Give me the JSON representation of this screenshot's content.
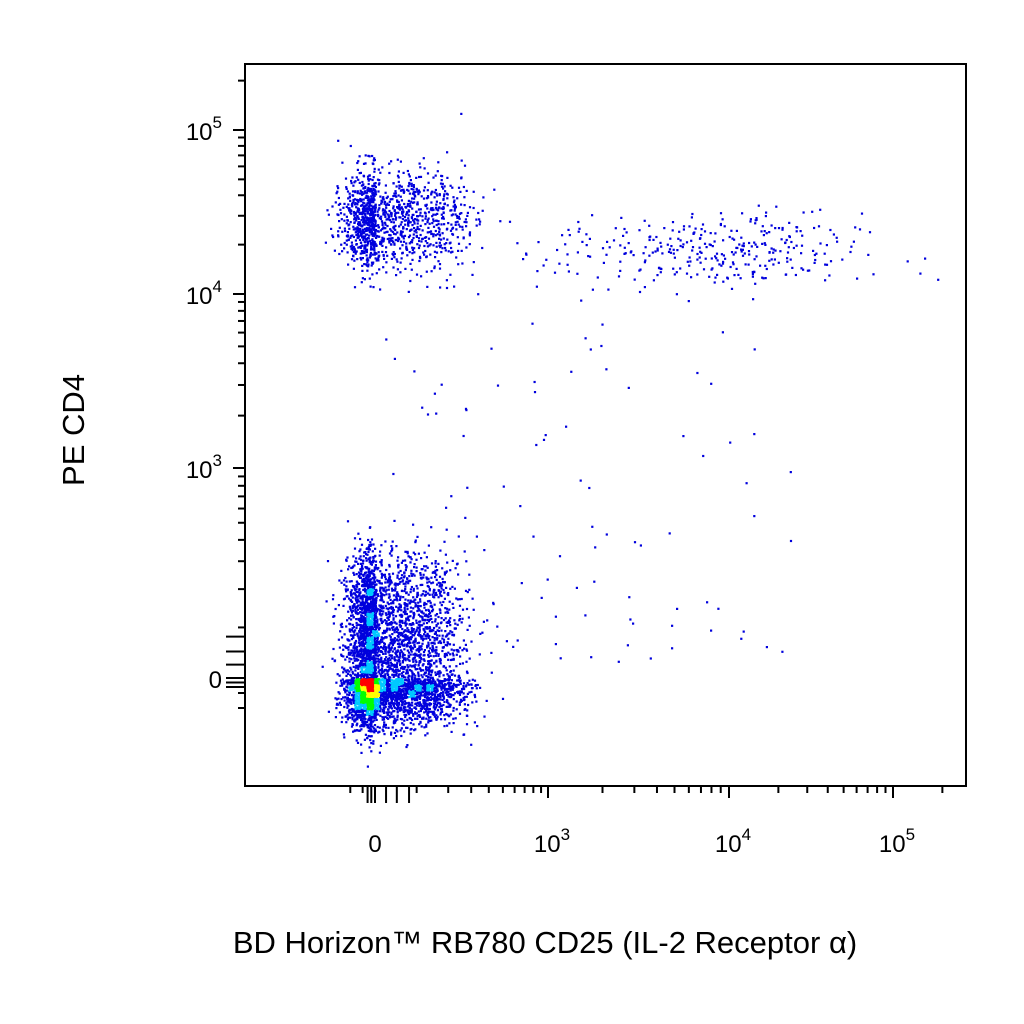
{
  "chart_data": {
    "type": "scatter",
    "title": "",
    "xlabel": "BD Horizon™ RB780 CD25 (IL-2 Receptor α)",
    "ylabel": "PE CD4",
    "x_scale": "biexponential",
    "y_scale": "biexponential",
    "xlim": [
      -300,
      200000
    ],
    "ylim": [
      -300,
      200000
    ],
    "grid": false,
    "legend": "none",
    "x_ticks": [
      {
        "value": 0,
        "base": "0",
        "exp": ""
      },
      {
        "value": 1000,
        "base": "10",
        "exp": "3"
      },
      {
        "value": 10000,
        "base": "10",
        "exp": "4"
      },
      {
        "value": 100000,
        "base": "10",
        "exp": "5"
      }
    ],
    "y_ticks": [
      {
        "value": 0,
        "base": "0",
        "exp": ""
      },
      {
        "value": 1000,
        "base": "10",
        "exp": "3"
      },
      {
        "value": 10000,
        "base": "10",
        "exp": "4"
      },
      {
        "value": 100000,
        "base": "10",
        "exp": "5"
      }
    ],
    "colormap": [
      "#0000dd",
      "#00c8ff",
      "#00ff00",
      "#ffff00",
      "#ff0000"
    ],
    "populations": [
      {
        "x_center": 0,
        "y_center": 0,
        "x_spread": 115,
        "y_spread": 145,
        "count": 5200
      },
      {
        "x_center": 0,
        "y_center": 29000,
        "x_spread": 130,
        "y_spread": 0.15,
        "count": 1300
      },
      {
        "x_center": 8000,
        "y_center": 18000,
        "x_spread": 0.45,
        "y_spread": 0.12,
        "count": 330
      }
    ]
  }
}
